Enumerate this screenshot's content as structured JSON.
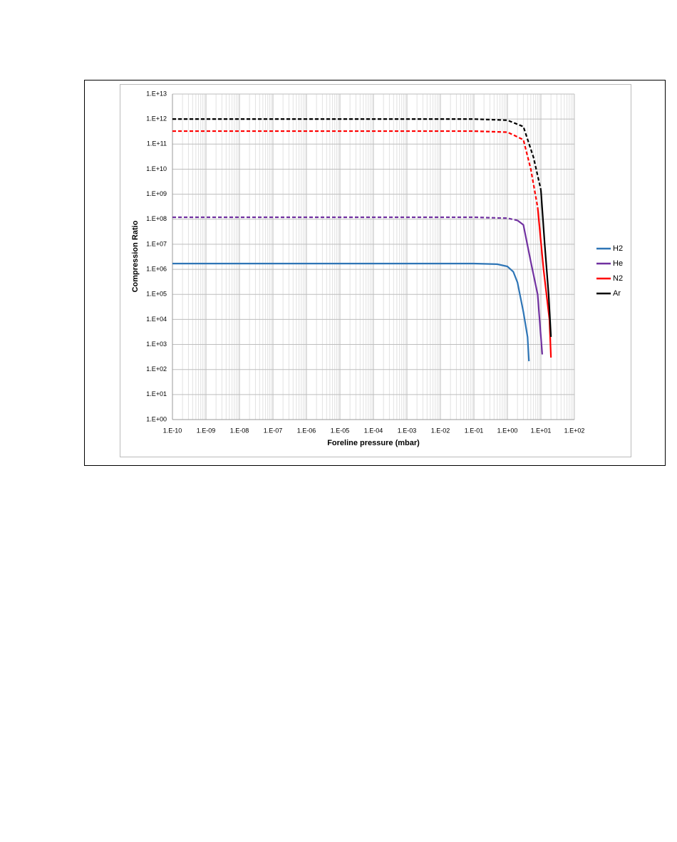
{
  "chart_data": {
    "type": "line",
    "x_label": "Foreline pressure (mbar)",
    "y_label": "Compression Ratio",
    "xscale": "log",
    "yscale": "log",
    "xlim": [
      1e-10,
      100
    ],
    "ylim": [
      1,
      10000000000000.0
    ],
    "xticks": [
      {
        "value": 1e-10,
        "label": "1.E-10"
      },
      {
        "value": 1e-09,
        "label": "1.E-09"
      },
      {
        "value": 1e-08,
        "label": "1.E-08"
      },
      {
        "value": 1e-07,
        "label": "1.E-07"
      },
      {
        "value": 1e-06,
        "label": "1.E-06"
      },
      {
        "value": 1e-05,
        "label": "1.E-05"
      },
      {
        "value": 0.0001,
        "label": "1.E-04"
      },
      {
        "value": 0.001,
        "label": "1.E-03"
      },
      {
        "value": 0.01,
        "label": "1.E-02"
      },
      {
        "value": 0.1,
        "label": "1.E-01"
      },
      {
        "value": 1,
        "label": "1.E+00"
      },
      {
        "value": 10,
        "label": "1.E+01"
      },
      {
        "value": 100,
        "label": "1.E+02"
      }
    ],
    "yticks": [
      {
        "value": 1,
        "label": "1.E+00"
      },
      {
        "value": 10,
        "label": "1.E+01"
      },
      {
        "value": 100,
        "label": "1.E+02"
      },
      {
        "value": 1000,
        "label": "1.E+03"
      },
      {
        "value": 10000.0,
        "label": "1.E+04"
      },
      {
        "value": 100000.0,
        "label": "1.E+05"
      },
      {
        "value": 1000000.0,
        "label": "1.E+06"
      },
      {
        "value": 10000000.0,
        "label": "1.E+07"
      },
      {
        "value": 100000000.0,
        "label": "1.E+08"
      },
      {
        "value": 1000000000.0,
        "label": "1.E+09"
      },
      {
        "value": 10000000000.0,
        "label": "1.E+10"
      },
      {
        "value": 100000000000.0,
        "label": "1.E+11"
      },
      {
        "value": 1000000000000.0,
        "label": "1.E+12"
      },
      {
        "value": 10000000000000.0,
        "label": "1.E+13"
      }
    ],
    "grid": true,
    "minor_grid_x": true,
    "legend": "right",
    "series": [
      {
        "name": "H2",
        "color": "#2e75b6",
        "segments": [
          {
            "style": "solid",
            "x": [
              1e-10,
              0.1,
              0.5,
              1,
              1.5,
              2,
              3,
              4,
              4.4
            ],
            "values": [
              1700000.0,
              1700000.0,
              1600000.0,
              1300000.0,
              800000.0,
              300000.0,
              20000.0,
              2000,
              215
            ]
          }
        ]
      },
      {
        "name": "He",
        "color": "#7030a0",
        "segments": [
          {
            "style": "dashed",
            "x": [
              1e-10,
              0.1,
              1,
              2
            ],
            "values": [
              120000000.0,
              120000000.0,
              110000000.0,
              90000000.0
            ]
          },
          {
            "style": "solid",
            "x": [
              2,
              3,
              5,
              8,
              11
            ],
            "values": [
              90000000.0,
              60000000.0,
              2000000.0,
              100000.0,
              400
            ]
          }
        ]
      },
      {
        "name": "N2",
        "color": "#ff0000",
        "segments": [
          {
            "style": "dashed",
            "x": [
              1e-10,
              0.1,
              1,
              3,
              5,
              8
            ],
            "values": [
              330000000000.0,
              330000000000.0,
              300000000000.0,
              150000000000.0,
              10000000000.0,
              300000000.0
            ]
          },
          {
            "style": "solid",
            "x": [
              8,
              12,
              18,
              20
            ],
            "values": [
              300000000.0,
              1000000.0,
              10000.0,
              300
            ]
          }
        ]
      },
      {
        "name": "Ar",
        "color": "#000000",
        "segments": [
          {
            "style": "dashed",
            "x": [
              1e-10,
              0.1,
              1,
              3,
              6,
              10
            ],
            "values": [
              1000000000000.0,
              1000000000000.0,
              900000000000.0,
              500000000000.0,
              30000000000.0,
              1500000000.0
            ]
          },
          {
            "style": "solid",
            "x": [
              10,
              13,
              17,
              20
            ],
            "values": [
              1500000000.0,
              10000000.0,
              100000.0,
              2000
            ]
          }
        ]
      }
    ]
  }
}
